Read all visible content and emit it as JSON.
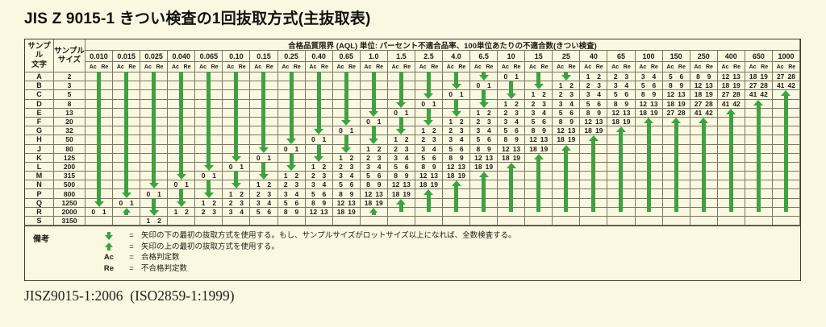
{
  "title": "JIS Z 9015-1 きつい検査の1回抜取方式(主抜取表)",
  "footer_ref": "JISZ9015-1:2006  (ISO2859-1:1999)",
  "colors": {
    "background": "#faf8e1",
    "arrow_green": "#3aa43e",
    "border": "#7a7865",
    "frame": "#403e2c",
    "text": "#1d1c16"
  },
  "table": {
    "letter_header": [
      "サンプル",
      "文字"
    ],
    "size_header": [
      "サンプル",
      "サイズ"
    ],
    "aql_header": "合格品質限界 (AQL) 単位: パーセント不適合品率、100単位あたりの不適合数(きつい検査)",
    "ac_label": "Ac",
    "re_label": "Re",
    "aqls": [
      "0.010",
      "0.015",
      "0.025",
      "0.040",
      "0.065",
      "0.10",
      "0.15",
      "0.25",
      "0.40",
      "0.65",
      "1.0",
      "1.5",
      "2.5",
      "4.0",
      "6.5",
      "10",
      "15",
      "25",
      "40",
      "65",
      "100",
      "150",
      "250",
      "400",
      "650",
      "1000"
    ],
    "arrow_tokens": {
      "DS": "down-arrow-shaft",
      "DH": "down-arrow-head",
      "D1": "down-arrow-single",
      "US": "up-arrow-shaft",
      "UH": "up-arrow-head",
      "UE": "up-arrow-end",
      "U1": "up-arrow-single"
    },
    "rows": [
      {
        "letter": "A",
        "size": "2",
        "cells": [
          "DS",
          "DS",
          "DS",
          "DS",
          "DS",
          "DS",
          "DS",
          "DS",
          "DS",
          "DS",
          "DS",
          "DS",
          "DS",
          "DS",
          "D1",
          "0 1",
          "DS",
          "D1",
          "1 2",
          "2 3",
          "3 4",
          "5 6",
          "8 9",
          "12 13",
          "18 19",
          "27 28"
        ]
      },
      {
        "letter": "B",
        "size": "3",
        "cells": [
          "DS",
          "DS",
          "DS",
          "DS",
          "DS",
          "DS",
          "DS",
          "DS",
          "DS",
          "DS",
          "DS",
          "DS",
          "DS",
          "DH",
          "0 1",
          "DS",
          "DH",
          "1 2",
          "2 3",
          "3 4",
          "5 6",
          "8 9",
          "12 13",
          "18 19",
          "27 28",
          "41 42"
        ]
      },
      {
        "letter": "C",
        "size": "5",
        "cells": [
          "DS",
          "DS",
          "DS",
          "DS",
          "DS",
          "DS",
          "DS",
          "DS",
          "DS",
          "DS",
          "DS",
          "DS",
          "DH",
          "0 1",
          "DS",
          "DH",
          "1 2",
          "2 3",
          "3 4",
          "5 6",
          "8 9",
          "12 13",
          "18 19",
          "27 28",
          "41 42",
          "UH"
        ]
      },
      {
        "letter": "D",
        "size": "8",
        "cells": [
          "DS",
          "DS",
          "DS",
          "DS",
          "DS",
          "DS",
          "DS",
          "DS",
          "DS",
          "DS",
          "DS",
          "DH",
          "0 1",
          "DS",
          "DH",
          "1 2",
          "2 3",
          "3 4",
          "5 6",
          "8 9",
          "12 13",
          "18 19",
          "27 28",
          "41 42",
          "UH",
          "US"
        ]
      },
      {
        "letter": "E",
        "size": "13",
        "cells": [
          "DS",
          "DS",
          "DS",
          "DS",
          "DS",
          "DS",
          "DS",
          "DS",
          "DS",
          "DS",
          "DH",
          "0 1",
          "DS",
          "DH",
          "1 2",
          "2 3",
          "3 4",
          "5 6",
          "8 9",
          "12 13",
          "18 19",
          "27 28",
          "41 42",
          "UH",
          "US",
          "US"
        ]
      },
      {
        "letter": "F",
        "size": "20",
        "cells": [
          "DS",
          "DS",
          "DS",
          "DS",
          "DS",
          "DS",
          "DS",
          "DS",
          "DS",
          "DH",
          "0 1",
          "DS",
          "DH",
          "1 2",
          "2 3",
          "3 4",
          "5 6",
          "8 9",
          "12 13",
          "18 19",
          "UH",
          "UH",
          "UH",
          "US",
          "US",
          "US"
        ]
      },
      {
        "letter": "G",
        "size": "32",
        "cells": [
          "DS",
          "DS",
          "DS",
          "DS",
          "DS",
          "DS",
          "DS",
          "DS",
          "DH",
          "0 1",
          "DS",
          "DH",
          "1 2",
          "2 3",
          "3 4",
          "5 6",
          "8 9",
          "12 13",
          "18 19",
          "UH",
          "US",
          "US",
          "US",
          "US",
          "US",
          "US"
        ]
      },
      {
        "letter": "H",
        "size": "50",
        "cells": [
          "DS",
          "DS",
          "DS",
          "DS",
          "DS",
          "DS",
          "DS",
          "DH",
          "0 1",
          "DS",
          "DH",
          "1 2",
          "2 3",
          "3 4",
          "5 6",
          "8 9",
          "12 13",
          "18 19",
          "UH",
          "US",
          "US",
          "US",
          "US",
          "US",
          "US",
          "US"
        ]
      },
      {
        "letter": "J",
        "size": "80",
        "cells": [
          "DS",
          "DS",
          "DS",
          "DS",
          "DS",
          "DS",
          "DH",
          "0 1",
          "DS",
          "DH",
          "1 2",
          "2 3",
          "3 4",
          "5 6",
          "8 9",
          "12 13",
          "18 19",
          "UH",
          "US",
          "US",
          "US",
          "US",
          "US",
          "US",
          "US",
          "US"
        ]
      },
      {
        "letter": "K",
        "size": "125",
        "cells": [
          "DS",
          "DS",
          "DS",
          "DS",
          "DS",
          "DH",
          "0 1",
          "DS",
          "DH",
          "1 2",
          "2 3",
          "3 4",
          "5 6",
          "8 9",
          "12 13",
          "18 19",
          "UH",
          "US",
          "US",
          "US",
          "US",
          "US",
          "US",
          "US",
          "US",
          "US"
        ]
      },
      {
        "letter": "L",
        "size": "200",
        "cells": [
          "DS",
          "DS",
          "DS",
          "DS",
          "DH",
          "0 1",
          "DS",
          "DH",
          "1 2",
          "2 3",
          "3 4",
          "5 6",
          "8 9",
          "12 13",
          "18 19",
          "UH",
          "US",
          "US",
          "US",
          "US",
          "US",
          "US",
          "US",
          "US",
          "US",
          "US"
        ]
      },
      {
        "letter": "M",
        "size": "315",
        "cells": [
          "DS",
          "DS",
          "DS",
          "DH",
          "0 1",
          "DS",
          "DH",
          "1 2",
          "2 3",
          "3 4",
          "5 6",
          "8 9",
          "12 13",
          "18 19",
          "UH",
          "US",
          "US",
          "US",
          "US",
          "US",
          "US",
          "US",
          "US",
          "US",
          "US",
          "US"
        ]
      },
      {
        "letter": "N",
        "size": "500",
        "cells": [
          "DS",
          "DS",
          "DH",
          "0 1",
          "DS",
          "DH",
          "1 2",
          "2 3",
          "3 4",
          "5 6",
          "8 9",
          "12 13",
          "18 19",
          "UH",
          "US",
          "US",
          "US",
          "US",
          "US",
          "US",
          "US",
          "US",
          "US",
          "US",
          "US",
          "US"
        ]
      },
      {
        "letter": "P",
        "size": "800",
        "cells": [
          "DS",
          "DH",
          "0 1",
          "DS",
          "DH",
          "1 2",
          "2 3",
          "3 4",
          "5 6",
          "8 9",
          "12 13",
          "18 19",
          "UH",
          "US",
          "US",
          "US",
          "US",
          "US",
          "US",
          "US",
          "US",
          "US",
          "US",
          "US",
          "US",
          "US"
        ]
      },
      {
        "letter": "Q",
        "size": "1250",
        "cells": [
          "DH",
          "0 1",
          "DS",
          "DH",
          "1 2",
          "2 3",
          "3 4",
          "5 6",
          "8 9",
          "12 13",
          "18 19",
          "UH",
          "US",
          "US",
          "US",
          "US",
          "US",
          "US",
          "US",
          "US",
          "US",
          "US",
          "US",
          "US",
          "US",
          "US"
        ]
      },
      {
        "letter": "R",
        "size": "2000",
        "cells": [
          "0 1",
          "U1",
          "DH",
          "1 2",
          "2 3",
          "3 4",
          "5 6",
          "8 9",
          "12 13",
          "18 19",
          "U1",
          "UE",
          "UE",
          "UE",
          "UE",
          "UE",
          "UE",
          "UE",
          "UE",
          "UE",
          "UE",
          "UE",
          "UE",
          "UE",
          "UE",
          "UE"
        ]
      },
      {
        "letter": "S",
        "size": "3150",
        "cells": [
          "",
          "",
          "1 2",
          "",
          "",
          "",
          "",
          "",
          "",
          "",
          "",
          "",
          "",
          "",
          "",
          "",
          "",
          "",
          "",
          "",
          "",
          "",
          "",
          "",
          "",
          ""
        ]
      }
    ]
  },
  "legend": {
    "label": "備考",
    "equals": "=",
    "items": [
      {
        "icon": "down-arrow-icon",
        "symbol": "",
        "text": "矢印の下の最初の抜取方式を使用する。もし、サンプルサイズがロットサイズ以上になれば、全数検査する。"
      },
      {
        "icon": "up-arrow-icon",
        "symbol": "",
        "text": "矢印の上の最初の抜取方式を使用する。"
      },
      {
        "icon": "",
        "symbol": "Ac",
        "text": "合格判定数"
      },
      {
        "icon": "",
        "symbol": "Re",
        "text": "不合格判定数"
      }
    ]
  }
}
